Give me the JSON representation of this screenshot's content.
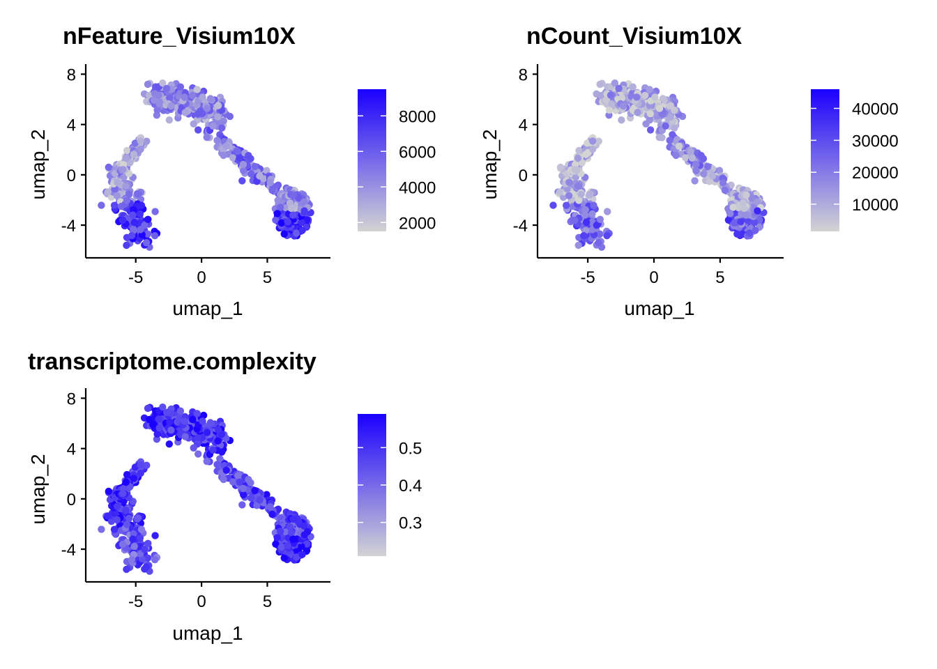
{
  "chart_data": [
    {
      "type": "scatter",
      "title": "nFeature_Visium10X",
      "xlabel": "umap_1",
      "ylabel": "umap_2",
      "xlim": [
        -8.8,
        9.8
      ],
      "ylim": [
        -6.6,
        8.8
      ],
      "x_ticks": [
        -5,
        0,
        5
      ],
      "x_tick_labels": [
        "-5",
        "0",
        "5"
      ],
      "y_ticks": [
        -4,
        0,
        4,
        8
      ],
      "y_tick_labels": [
        "-4",
        "0",
        "4",
        "8"
      ],
      "color_scale": {
        "low_color": "#d3d3d3",
        "high_color": "#1a00ff",
        "min": 1500,
        "max": 9500,
        "ticks": [
          2000,
          4000,
          6000,
          8000
        ],
        "tick_labels": [
          "2000",
          "4000",
          "6000",
          "8000"
        ]
      },
      "point_color_level": {
        "upper_cluster": 0.35,
        "bridge": 0.45,
        "right_cluster_top": 0.3,
        "right_cluster_bottom": 0.8,
        "left_arc_top": 0.25,
        "left_arc_bottom": 0.75
      }
    },
    {
      "type": "scatter",
      "title": "nCount_Visium10X",
      "xlabel": "umap_1",
      "ylabel": "umap_2",
      "xlim": [
        -8.8,
        9.8
      ],
      "ylim": [
        -6.6,
        8.8
      ],
      "x_ticks": [
        -5,
        0,
        5
      ],
      "x_tick_labels": [
        "-5",
        "0",
        "5"
      ],
      "y_ticks": [
        -4,
        0,
        4,
        8
      ],
      "y_tick_labels": [
        "-4",
        "0",
        "4",
        "8"
      ],
      "color_scale": {
        "low_color": "#d3d3d3",
        "high_color": "#1a00ff",
        "min": 1500,
        "max": 46000,
        "ticks": [
          10000,
          20000,
          30000,
          40000
        ],
        "tick_labels": [
          "10000",
          "20000",
          "30000",
          "40000"
        ]
      },
      "point_color_level": {
        "upper_cluster": 0.2,
        "bridge": 0.3,
        "right_cluster_top": 0.15,
        "right_cluster_bottom": 0.55,
        "left_arc_top": 0.15,
        "left_arc_bottom": 0.55
      }
    },
    {
      "type": "scatter",
      "title": "transcriptome.complexity",
      "xlabel": "umap_1",
      "ylabel": "umap_2",
      "xlim": [
        -8.8,
        9.8
      ],
      "ylim": [
        -6.6,
        8.8
      ],
      "x_ticks": [
        -5,
        0,
        5
      ],
      "x_tick_labels": [
        "-5",
        "0",
        "5"
      ],
      "y_ticks": [
        -4,
        0,
        4,
        8
      ],
      "y_tick_labels": [
        "-4",
        "0",
        "4",
        "8"
      ],
      "color_scale": {
        "low_color": "#d3d3d3",
        "high_color": "#1a00ff",
        "min": 0.21,
        "max": 0.59,
        "ticks": [
          0.3,
          0.4,
          0.5
        ],
        "tick_labels": [
          "0.3",
          "0.4",
          "0.5"
        ]
      },
      "point_color_level": {
        "upper_cluster": 0.8,
        "bridge": 0.7,
        "right_cluster_top": 0.65,
        "right_cluster_bottom": 0.85,
        "left_arc_top": 0.8,
        "left_arc_bottom": 0.6
      }
    }
  ]
}
